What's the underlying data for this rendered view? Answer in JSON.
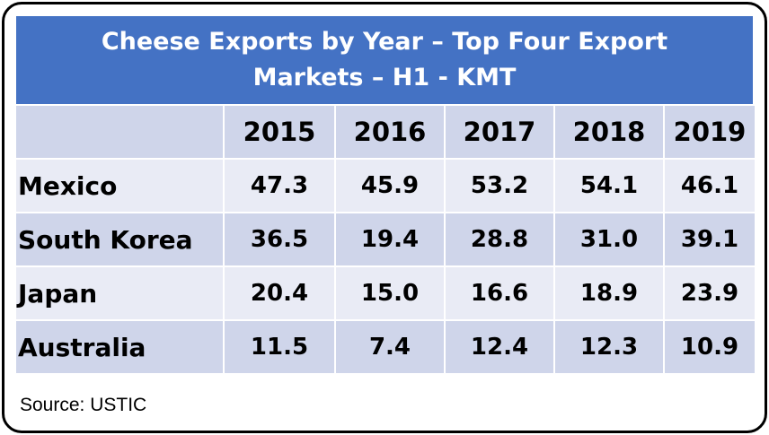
{
  "header": {
    "title": "Cheese Exports by Year – Top Four Export Markets – H1 - KMT"
  },
  "table": {
    "columns": [
      "2015",
      "2016",
      "2017",
      "2018",
      "2019"
    ],
    "rows": [
      [
        "Mexico",
        "47.3",
        "45.9",
        "53.2",
        "54.1",
        "46.1"
      ],
      [
        "South Korea",
        "36.5",
        "19.4",
        "28.8",
        "31.0",
        "39.1"
      ],
      [
        "Japan",
        "20.4",
        "15.0",
        "16.6",
        "18.9",
        "23.9"
      ],
      [
        "Australia",
        "11.5",
        "7.4",
        "12.4",
        "12.3",
        "10.9"
      ]
    ]
  },
  "footer": {
    "source": "Source: USTIC"
  }
}
